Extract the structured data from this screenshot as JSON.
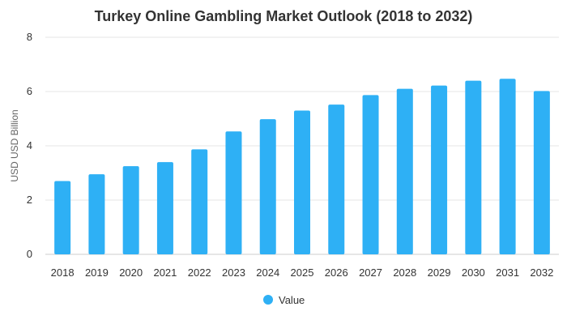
{
  "chart_data": {
    "type": "bar",
    "title": "Turkey Online Gambling Market Outlook (2018 to 2032)",
    "xlabel": "",
    "ylabel": "USD USD Billion",
    "categories": [
      "2018",
      "2019",
      "2020",
      "2021",
      "2022",
      "2023",
      "2024",
      "2025",
      "2026",
      "2027",
      "2028",
      "2029",
      "2030",
      "2031",
      "2032"
    ],
    "series": [
      {
        "name": "Value",
        "values": [
          2.7,
          2.95,
          3.25,
          3.4,
          3.87,
          4.53,
          4.98,
          5.3,
          5.52,
          5.87,
          6.1,
          6.22,
          6.4,
          6.47,
          6.02
        ]
      }
    ],
    "ylim": [
      0,
      8
    ],
    "yticks": [
      "0",
      "2",
      "4",
      "6",
      "8"
    ],
    "grid": true,
    "legend_position": "bottom",
    "colors": {
      "bar": "#2eb0f5",
      "grid": "#e6e6e6",
      "text": "#333333"
    }
  }
}
